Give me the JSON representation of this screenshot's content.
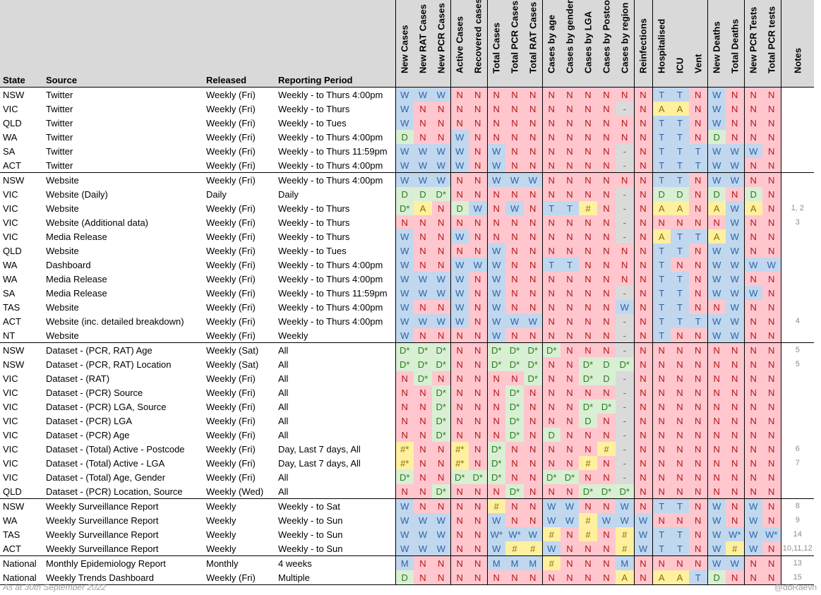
{
  "headers": {
    "state": "State",
    "source": "Source",
    "released": "Released",
    "period": "Reporting Period",
    "notes": "Notes",
    "columns": [
      "New Cases",
      "New RAT Cases",
      "New PCR Cases",
      "Active Cases",
      "Recovered cases",
      "Total Cases",
      "Total PCR Cases",
      "Total RAT Cases",
      "Cases by age",
      "Cases by gender",
      "Cases by LGA",
      "Cases by Postcode",
      "Cases by region",
      "Reinfections",
      "Hospitalised",
      "ICU",
      "Vent",
      "New Deaths",
      "Total Deaths",
      "New PCR Tests",
      "Total PCR tests"
    ]
  },
  "legend_colors": {
    "W": "#c0d7ee",
    "N": "#ffc6ce",
    "D": "#d8efd4",
    "A": "#fff0a0",
    "hash": "#fff0a0",
    "dash": "#dadada"
  },
  "rows": [
    {
      "state": "NSW",
      "source": "Twitter",
      "released": "Weekly (Fri)",
      "period": "Weekly - to Thurs 4:00pm",
      "notes": "",
      "cells": [
        "W",
        "W",
        "W",
        "N",
        "N",
        "N",
        "N",
        "N",
        "N",
        "N",
        "N",
        "N",
        "N",
        "N",
        "T",
        "T",
        "N",
        "W",
        "N",
        "N",
        "N"
      ]
    },
    {
      "state": "VIC",
      "source": "Twitter",
      "released": "Weekly (Fri)",
      "period": "Weekly - to Thurs",
      "notes": "",
      "cells": [
        "W",
        "N",
        "N",
        "N",
        "N",
        "N",
        "N",
        "N",
        "N",
        "N",
        "N",
        "N",
        "-",
        "N",
        "A",
        "A",
        "N",
        "W",
        "N",
        "N",
        "N"
      ]
    },
    {
      "state": "QLD",
      "source": "Twitter",
      "released": "Weekly (Fri)",
      "period": "Weekly - to Tues",
      "notes": "",
      "cells": [
        "W",
        "N",
        "N",
        "N",
        "N",
        "N",
        "N",
        "N",
        "N",
        "N",
        "N",
        "N",
        "N",
        "N",
        "T",
        "T",
        "N",
        "W",
        "N",
        "N",
        "N"
      ]
    },
    {
      "state": "WA",
      "source": "Twitter",
      "released": "Weekly (Fri)",
      "period": "Weekly - to Thurs 4:00pm",
      "notes": "",
      "cells": [
        "D",
        "N",
        "N",
        "W",
        "N",
        "N",
        "N",
        "N",
        "N",
        "N",
        "N",
        "N",
        "N",
        "N",
        "T",
        "T",
        "N",
        "D",
        "N",
        "N",
        "N"
      ]
    },
    {
      "state": "SA",
      "source": "Twitter",
      "released": "Weekly (Fri)",
      "period": "Weekly - to Thurs 11:59pm",
      "notes": "",
      "cells": [
        "W",
        "W",
        "W",
        "W",
        "N",
        "W",
        "N",
        "N",
        "N",
        "N",
        "N",
        "N",
        "-",
        "N",
        "T",
        "T",
        "T",
        "W",
        "W",
        "W",
        "N"
      ]
    },
    {
      "state": "ACT",
      "source": "Twitter",
      "released": "Weekly (Fri)",
      "period": "Weekly - to Thurs 4:00pm",
      "notes": "",
      "cells": [
        "W",
        "W",
        "W",
        "W",
        "N",
        "W",
        "N",
        "N",
        "N",
        "N",
        "N",
        "N",
        "-",
        "N",
        "T",
        "T",
        "T",
        "W",
        "W",
        "N",
        "N"
      ]
    },
    {
      "state": "NSW",
      "source": "Website",
      "released": "Weekly (Fri)",
      "period": "Weekly - to Thurs 4:00pm",
      "notes": "",
      "cells": [
        "W",
        "W",
        "W",
        "N",
        "N",
        "W",
        "W",
        "W",
        "N",
        "N",
        "N",
        "N",
        "N",
        "N",
        "T",
        "T",
        "N",
        "W",
        "W",
        "N",
        "N"
      ]
    },
    {
      "state": "VIC",
      "source": "Website (Daily)",
      "released": "Daily",
      "period": "Daily",
      "notes": "",
      "cells": [
        "D",
        "D",
        "D*",
        "N",
        "N",
        "N",
        "N",
        "N",
        "N",
        "N",
        "N",
        "N",
        "-",
        "N",
        "D",
        "D",
        "N",
        "D",
        "N",
        "D",
        "N"
      ]
    },
    {
      "state": "VIC",
      "source": "Website",
      "released": "Weekly (Fri)",
      "period": "Weekly - to Thurs",
      "notes": "1, 2",
      "cells": [
        "D*",
        "A",
        "N",
        "D",
        "W",
        "N",
        "W",
        "N",
        "T",
        "T",
        "#",
        "N",
        "-",
        "N",
        "A",
        "A",
        "N",
        "A",
        "W",
        "A",
        "N"
      ]
    },
    {
      "state": "VIC",
      "source": "Website (Additional data)",
      "released": "Weekly (Fri)",
      "period": "Weekly - to Thurs",
      "notes": "3",
      "cells": [
        "N",
        "N",
        "N",
        "N",
        "N",
        "N",
        "N",
        "N",
        "N",
        "N",
        "N",
        "N",
        "-",
        "N",
        "N",
        "N",
        "N",
        "N",
        "W",
        "N",
        "N"
      ]
    },
    {
      "state": "VIC",
      "source": "Media Release",
      "released": "Weekly (Fri)",
      "period": "Weekly - to Thurs",
      "notes": "",
      "cells": [
        "W",
        "N",
        "N",
        "W",
        "N",
        "N",
        "N",
        "N",
        "N",
        "N",
        "N",
        "N",
        "-",
        "N",
        "A",
        "T",
        "T",
        "A",
        "W",
        "N",
        "N"
      ]
    },
    {
      "state": "QLD",
      "source": "Website",
      "released": "Weekly (Fri)",
      "period": "Weekly - to Tues",
      "notes": "",
      "cells": [
        "W",
        "N",
        "N",
        "N",
        "N",
        "W",
        "N",
        "N",
        "N",
        "N",
        "N",
        "N",
        "N",
        "N",
        "T",
        "T",
        "N",
        "W",
        "W",
        "N",
        "N"
      ]
    },
    {
      "state": "WA",
      "source": "Dashboard",
      "released": "Weekly (Fri)",
      "period": "Weekly - to Thurs 4:00pm",
      "notes": "",
      "cells": [
        "W",
        "N",
        "N",
        "W",
        "W",
        "W",
        "N",
        "N",
        "T",
        "T",
        "N",
        "N",
        "N",
        "N",
        "T",
        "N",
        "N",
        "W",
        "W",
        "W",
        "W"
      ]
    },
    {
      "state": "WA",
      "source": "Media Release",
      "released": "Weekly (Fri)",
      "period": "Weekly - to Thurs 4:00pm",
      "notes": "",
      "cells": [
        "W",
        "W",
        "W",
        "W",
        "N",
        "W",
        "N",
        "N",
        "N",
        "N",
        "N",
        "N",
        "N",
        "N",
        "T",
        "T",
        "N",
        "W",
        "W",
        "N",
        "N"
      ]
    },
    {
      "state": "SA",
      "source": "Media Release",
      "released": "Weekly (Fri)",
      "period": "Weekly - to Thurs 11:59pm",
      "notes": "",
      "cells": [
        "W",
        "W",
        "W",
        "W",
        "N",
        "W",
        "N",
        "N",
        "N",
        "N",
        "N",
        "N",
        "-",
        "N",
        "T",
        "T",
        "N",
        "W",
        "W",
        "W",
        "N"
      ]
    },
    {
      "state": "TAS",
      "source": "Website",
      "released": "Weekly (Fri)",
      "period": "Weekly - to Thurs 4:00pm",
      "notes": "",
      "cells": [
        "W",
        "N",
        "N",
        "W",
        "N",
        "W",
        "N",
        "N",
        "N",
        "N",
        "N",
        "N",
        "W",
        "N",
        "T",
        "T",
        "N",
        "N",
        "W",
        "N",
        "N"
      ]
    },
    {
      "state": "ACT",
      "source": "Website (inc. detailed breakdown)",
      "released": "Weekly (Fri)",
      "period": "Weekly - to Thurs 4:00pm",
      "notes": "4",
      "cells": [
        "W",
        "W",
        "W",
        "W",
        "N",
        "W",
        "W",
        "W",
        "N",
        "N",
        "N",
        "N",
        "-",
        "N",
        "T",
        "T",
        "T",
        "W",
        "W",
        "N",
        "N"
      ]
    },
    {
      "state": "NT",
      "source": "Website",
      "released": "Weekly (Fri)",
      "period": "Weekly",
      "notes": "",
      "cells": [
        "W",
        "N",
        "N",
        "N",
        "N",
        "W",
        "N",
        "N",
        "N",
        "N",
        "N",
        "N",
        "-",
        "N",
        "T",
        "N",
        "N",
        "W",
        "W",
        "N",
        "N"
      ]
    },
    {
      "state": "NSW",
      "source": "Dataset - (PCR, RAT) Age",
      "released": "Weekly (Sat)",
      "period": "All",
      "notes": "5",
      "cells": [
        "D*",
        "D*",
        "D*",
        "N",
        "N",
        "D*",
        "D*",
        "D*",
        "D*",
        "N",
        "N",
        "N",
        "-",
        "N",
        "N",
        "N",
        "N",
        "N",
        "N",
        "N",
        "N"
      ]
    },
    {
      "state": "NSW",
      "source": "Dataset - (PCR, RAT) Location",
      "released": "Weekly (Sat)",
      "period": "All",
      "notes": "5",
      "cells": [
        "D*",
        "D*",
        "D*",
        "N",
        "N",
        "D*",
        "D*",
        "D*",
        "N",
        "N",
        "D*",
        "D",
        "D*",
        "N",
        "N",
        "N",
        "N",
        "N",
        "N",
        "N",
        "N"
      ]
    },
    {
      "state": "VIC",
      "source": "Dataset - (RAT)",
      "released": "Weekly (Fri)",
      "period": "All",
      "notes": "",
      "cells": [
        "N",
        "D*",
        "N",
        "N",
        "N",
        "N",
        "N",
        "D*",
        "N",
        "N",
        "D*",
        "D",
        "-",
        "N",
        "N",
        "N",
        "N",
        "N",
        "N",
        "N",
        "N"
      ]
    },
    {
      "state": "VIC",
      "source": "Dataset - (PCR) Source",
      "released": "Weekly (Fri)",
      "period": "All",
      "notes": "",
      "cells": [
        "N",
        "N",
        "D*",
        "N",
        "N",
        "N",
        "D*",
        "N",
        "N",
        "N",
        "N",
        "N",
        "-",
        "N",
        "N",
        "N",
        "N",
        "N",
        "N",
        "N",
        "N"
      ]
    },
    {
      "state": "VIC",
      "source": "Dataset - (PCR) LGA, Source",
      "released": "Weekly (Fri)",
      "period": "All",
      "notes": "",
      "cells": [
        "N",
        "N",
        "D*",
        "N",
        "N",
        "N",
        "D*",
        "N",
        "N",
        "N",
        "D*",
        "D*",
        "-",
        "N",
        "N",
        "N",
        "N",
        "N",
        "N",
        "N",
        "N"
      ]
    },
    {
      "state": "VIC",
      "source": "Dataset - (PCR) LGA",
      "released": "Weekly (Fri)",
      "period": "All",
      "notes": "",
      "cells": [
        "N",
        "N",
        "D*",
        "N",
        "N",
        "N",
        "D*",
        "N",
        "N",
        "N",
        "D",
        "N",
        "-",
        "N",
        "N",
        "N",
        "N",
        "N",
        "N",
        "N",
        "N"
      ]
    },
    {
      "state": "VIC",
      "source": "Dataset - (PCR) Age",
      "released": "Weekly (Fri)",
      "period": "All",
      "notes": "",
      "cells": [
        "N",
        "N",
        "D*",
        "N",
        "N",
        "N",
        "D*",
        "N",
        "D",
        "N",
        "N",
        "N",
        "-",
        "N",
        "N",
        "N",
        "N",
        "N",
        "N",
        "N",
        "N"
      ]
    },
    {
      "state": "VIC",
      "source": "Dataset - (Total) Active  - Postcode",
      "released": "Weekly (Fri)",
      "period": "Day, Last 7 days, All",
      "notes": "6",
      "cells": [
        "#*",
        "N",
        "N",
        "#*",
        "N",
        "D*",
        "N",
        "N",
        "N",
        "N",
        "N",
        "#",
        "-",
        "N",
        "N",
        "N",
        "N",
        "N",
        "N",
        "N",
        "N"
      ]
    },
    {
      "state": "VIC",
      "source": "Dataset - (Total) Active  - LGA",
      "released": "Weekly (Fri)",
      "period": "Day, Last 7 days, All",
      "notes": "7",
      "cells": [
        "#*",
        "N",
        "N",
        "#*",
        "N",
        "D*",
        "N",
        "N",
        "N",
        "N",
        "#",
        "N",
        "-",
        "N",
        "N",
        "N",
        "N",
        "N",
        "N",
        "N",
        "N"
      ]
    },
    {
      "state": "VIC",
      "source": "Dataset - (Total) Age, Gender",
      "released": "Weekly (Fri)",
      "period": "All",
      "notes": "",
      "cells": [
        "D*",
        "N",
        "N",
        "D*",
        "D*",
        "D*",
        "N",
        "N",
        "D*",
        "D*",
        "N",
        "N",
        "-",
        "N",
        "N",
        "N",
        "N",
        "N",
        "N",
        "N",
        "N"
      ]
    },
    {
      "state": "QLD",
      "source": "Dataset - (PCR) Location, Source",
      "released": "Weekly (Wed)",
      "period": "All",
      "notes": "",
      "cells": [
        "N",
        "N",
        "D*",
        "N",
        "N",
        "N",
        "D*",
        "N",
        "N",
        "N",
        "D*",
        "D*",
        "D*",
        "N",
        "N",
        "N",
        "N",
        "N",
        "N",
        "N",
        "N"
      ]
    },
    {
      "state": "NSW",
      "source": "Weekly Surveillance Report",
      "released": "Weekly",
      "period": "Weekly - to Sat",
      "notes": "8",
      "cells": [
        "W",
        "N",
        "N",
        "N",
        "N",
        "#",
        "N",
        "N",
        "W",
        "W",
        "N",
        "N",
        "W",
        "N",
        "T",
        "T",
        "N",
        "W",
        "N",
        "W",
        "N"
      ]
    },
    {
      "state": "WA",
      "source": "Weekly Surveillance Report",
      "released": "Weekly",
      "period": "Weekly - to Sun",
      "notes": "9",
      "cells": [
        "W",
        "W",
        "W",
        "N",
        "N",
        "W",
        "N",
        "N",
        "W",
        "W",
        "#",
        "W",
        "W",
        "W",
        "N",
        "N",
        "N",
        "W",
        "N",
        "W",
        "N"
      ]
    },
    {
      "state": "TAS",
      "source": "Weekly Surveillance Report",
      "released": "Weekly",
      "period": "Weekly - to Sun",
      "notes": "14",
      "cells": [
        "W",
        "W",
        "W",
        "N",
        "N",
        "W*",
        "W*",
        "W",
        "#",
        "N",
        "#",
        "N",
        "#",
        "W",
        "T",
        "T",
        "N",
        "W",
        "W*",
        "W",
        "W*"
      ]
    },
    {
      "state": "ACT",
      "source": "Weekly Surveillance Report",
      "released": "Weekly",
      "period": "Weekly - to Sun",
      "notes": "10,11,12",
      "cells": [
        "W",
        "W",
        "W",
        "N",
        "N",
        "W",
        "#",
        "#",
        "W",
        "N",
        "N",
        "N",
        "#",
        "W",
        "T",
        "T",
        "N",
        "W",
        "#",
        "W",
        "N"
      ]
    },
    {
      "state": "National",
      "source": "Monthly Epidemiology Report",
      "released": "Monthly",
      "period": "4 weeks",
      "notes": "13",
      "cells": [
        "M",
        "N",
        "N",
        "N",
        "N",
        "M",
        "M",
        "M",
        "#",
        "N",
        "N",
        "N",
        "M",
        "N",
        "N",
        "N",
        "N",
        "W",
        "W",
        "N",
        "N"
      ]
    },
    {
      "state": "National",
      "source": "Weekly Trends Dashboard",
      "released": "Weekly (Fri)",
      "period": "Multiple",
      "notes": "15",
      "cells": [
        "D",
        "N",
        "N",
        "N",
        "N",
        "N",
        "N",
        "N",
        "N",
        "N",
        "N",
        "N",
        "A",
        "N",
        "A",
        "A",
        "T",
        "D",
        "N",
        "N",
        "N"
      ]
    }
  ],
  "group_starts": [
    6,
    18,
    29,
    33
  ],
  "footer": {
    "left": "As at 30th September 2022",
    "right": "@dbRaevn"
  }
}
